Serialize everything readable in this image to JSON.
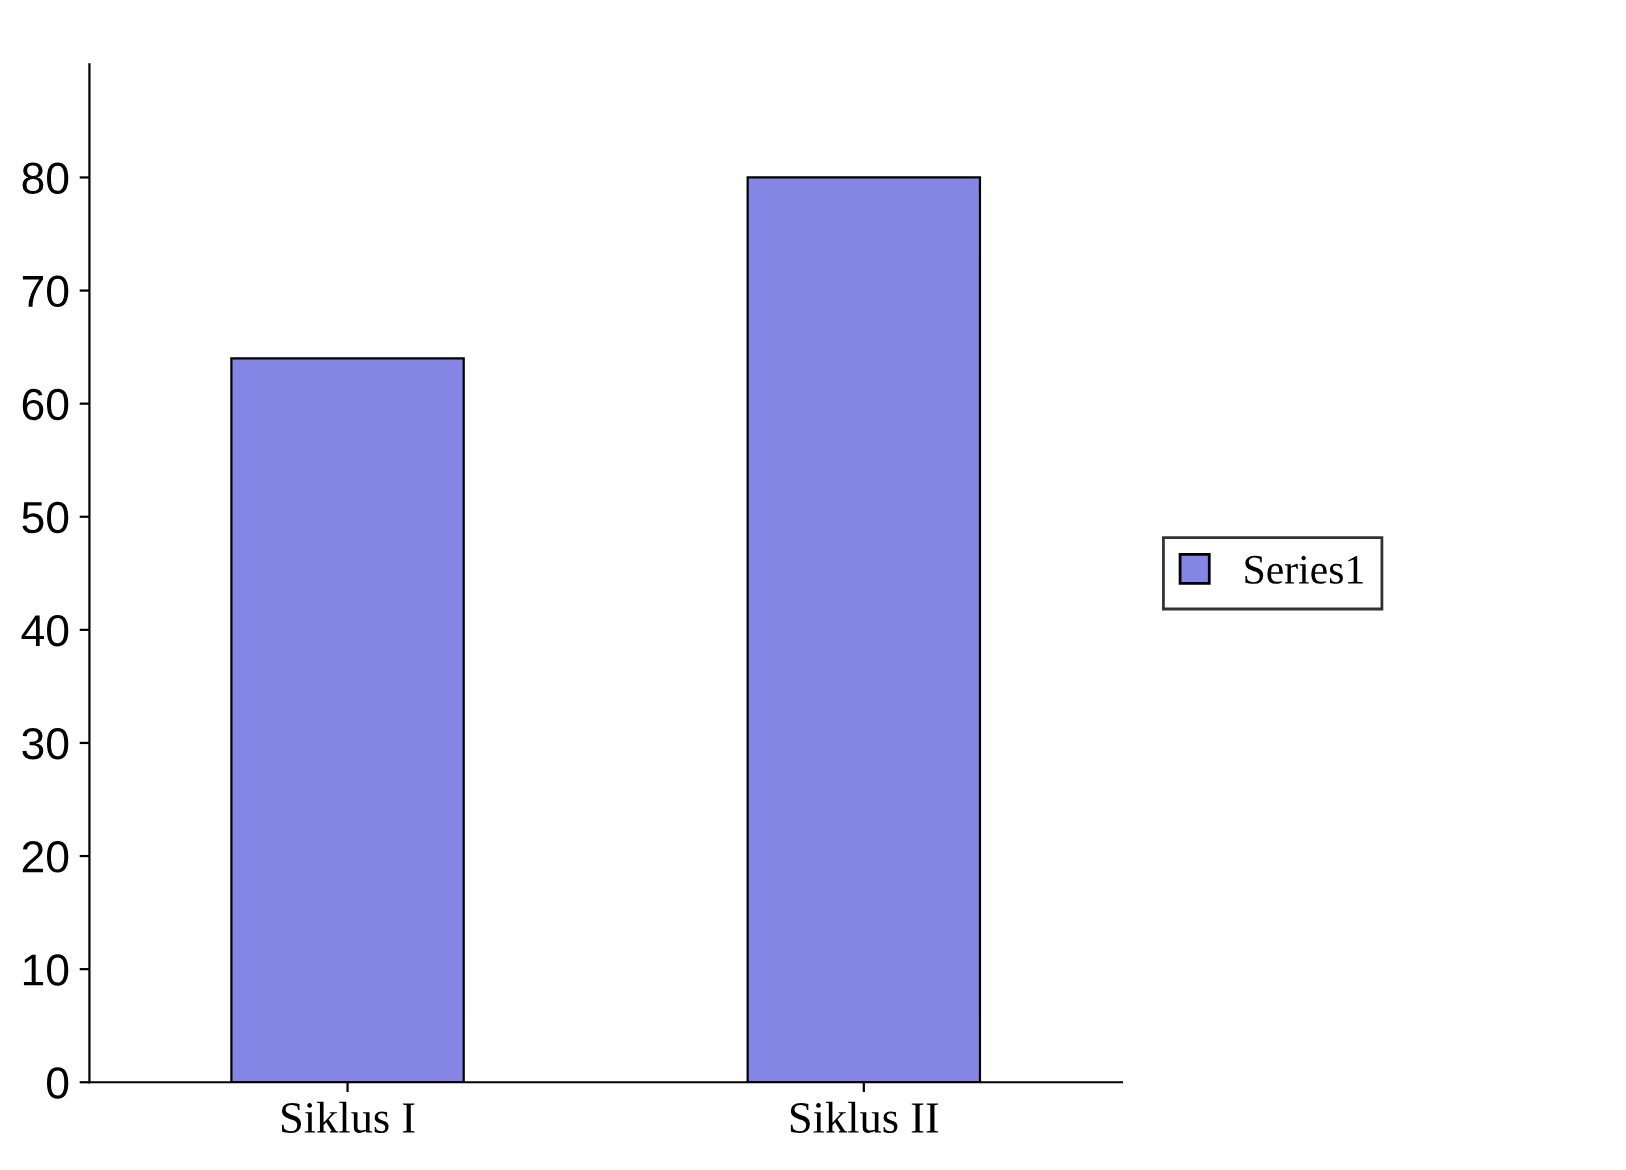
{
  "chart_data": {
    "type": "bar",
    "categories": [
      "Siklus I",
      "Siklus II"
    ],
    "series": [
      {
        "name": "Series1",
        "color": "#8585e6",
        "values": [
          64,
          80
        ]
      }
    ],
    "ylim": [
      0,
      90
    ],
    "yticks": [
      0,
      10,
      20,
      30,
      40,
      50,
      60,
      70,
      80
    ],
    "grid": false,
    "legend": "right"
  }
}
